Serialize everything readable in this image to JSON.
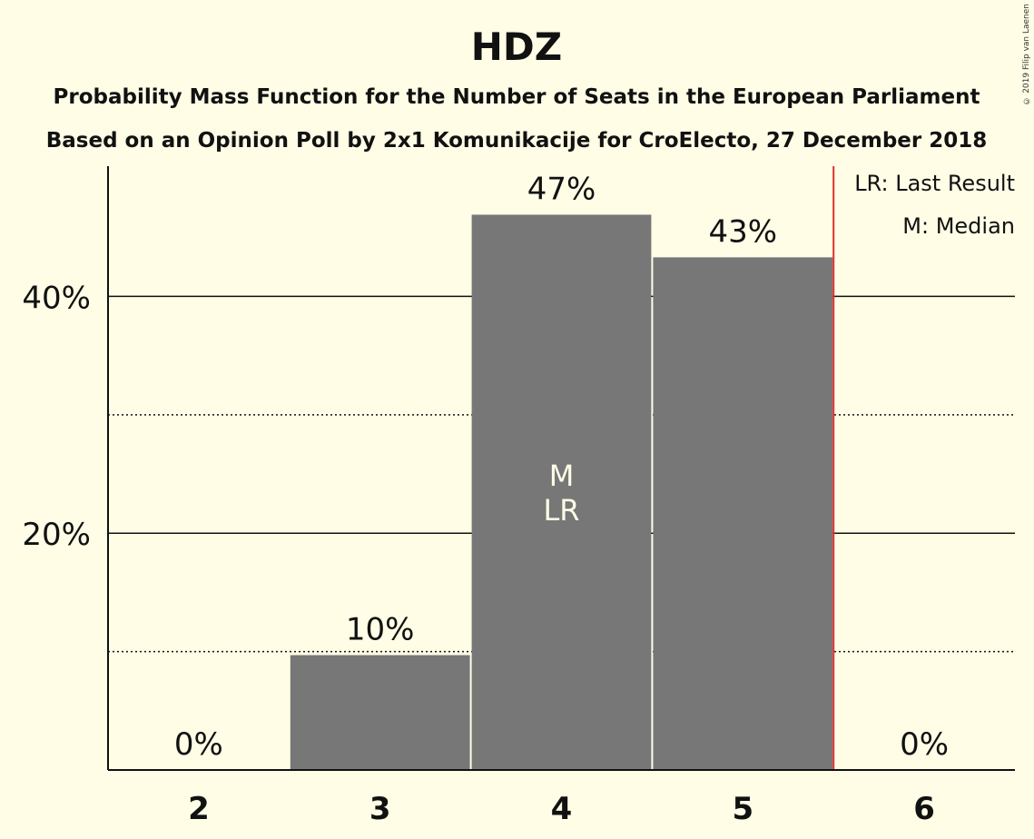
{
  "credit": "© 2019 Filip van Laenen",
  "colors": {
    "background": "#FFFDE6",
    "bar": "#777777",
    "last_result_line": "#E03030",
    "text": "#111111",
    "bar_text": "#FFFDE6"
  },
  "chart_data": {
    "type": "bar",
    "title": "HDZ",
    "subtitle": "Probability Mass Function for the Number of Seats in the European Parliament",
    "subtitle2": "Based on an Opinion Poll by 2x1 Komunikacije for CroElecto, 27 December 2018",
    "xlabel": "",
    "ylabel": "",
    "categories": [
      "2",
      "3",
      "4",
      "5",
      "6"
    ],
    "values": [
      0,
      9.7,
      46.9,
      43.3,
      0
    ],
    "value_labels": [
      "0%",
      "10%",
      "47%",
      "43%",
      "0%"
    ],
    "ylim": [
      0,
      51
    ],
    "y_ticks": [
      {
        "value": 20,
        "label": "20%"
      },
      {
        "value": 40,
        "label": "40%"
      }
    ],
    "dotted_gridlines": [
      10,
      30
    ],
    "median_category": "4",
    "last_result_category": "4",
    "median_marker": "M",
    "last_result_marker": "LR",
    "last_result_line_after": "5",
    "legend": [
      "LR: Last Result",
      "M: Median"
    ],
    "legend_position": "top-right"
  }
}
